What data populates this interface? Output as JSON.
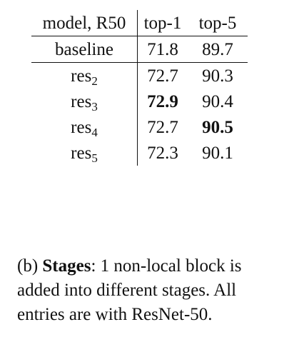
{
  "table": {
    "headers": [
      "model, R50",
      "top-1",
      "top-5"
    ],
    "rows": [
      {
        "model": "baseline",
        "model_sub": "",
        "top1": "71.8",
        "top5": "89.7",
        "bold_top1": false,
        "bold_top5": false
      },
      {
        "model": "res",
        "model_sub": "2",
        "top1": "72.7",
        "top5": "90.3",
        "bold_top1": false,
        "bold_top5": false
      },
      {
        "model": "res",
        "model_sub": "3",
        "top1": "72.9",
        "top5": "90.4",
        "bold_top1": true,
        "bold_top5": false
      },
      {
        "model": "res",
        "model_sub": "4",
        "top1": "72.7",
        "top5": "90.5",
        "bold_top1": false,
        "bold_top5": true
      },
      {
        "model": "res",
        "model_sub": "5",
        "top1": "72.3",
        "top5": "90.1",
        "bold_top1": false,
        "bold_top5": false
      }
    ]
  },
  "caption": {
    "prefix": "(b) ",
    "bold": "Stages",
    "text": ": 1 non-local block is added into different stages.  All entries are with ResNet-50."
  }
}
